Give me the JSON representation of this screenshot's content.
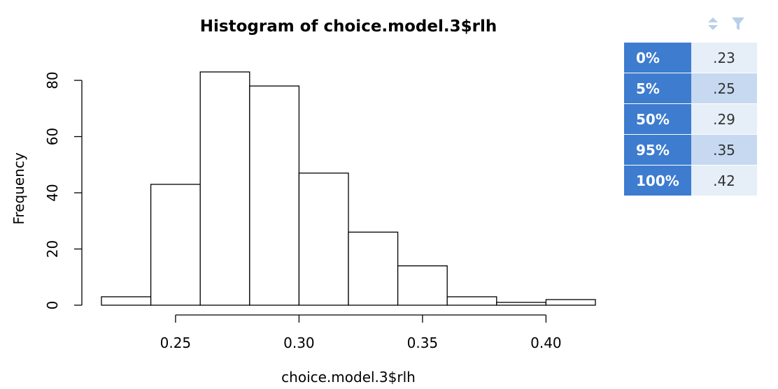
{
  "chart_data": {
    "type": "bar",
    "title": "Histogram of choice.model.3$rlh",
    "xlabel": "choice.model.3$rlh",
    "ylabel": "Frequency",
    "bin_edges": [
      0.22,
      0.24,
      0.26,
      0.28,
      0.3,
      0.32,
      0.34,
      0.36,
      0.38,
      0.4,
      0.42
    ],
    "values": [
      3,
      43,
      83,
      78,
      47,
      26,
      14,
      3,
      1,
      2
    ],
    "xticks": [
      "0.25",
      "0.30",
      "0.35",
      "0.40"
    ],
    "yticks": [
      "0",
      "20",
      "40",
      "60",
      "80"
    ],
    "xlim": [
      0.22,
      0.42
    ],
    "ylim": [
      0,
      83
    ],
    "grid": false
  },
  "quantiles": {
    "rows": [
      {
        "label": "0%",
        "value": ".23"
      },
      {
        "label": "5%",
        "value": ".25"
      },
      {
        "label": "50%",
        "value": ".29"
      },
      {
        "label": "95%",
        "value": ".35"
      },
      {
        "label": "100%",
        "value": ".42"
      }
    ]
  },
  "toolbar": {
    "sort_icon": "sort-icon",
    "filter_icon": "filter-icon"
  },
  "colors": {
    "header_blue": "#3d7ccf",
    "row_light": "#e6eef8",
    "row_mid": "#c6d9f1",
    "icon_light": "#b8cfe9"
  }
}
